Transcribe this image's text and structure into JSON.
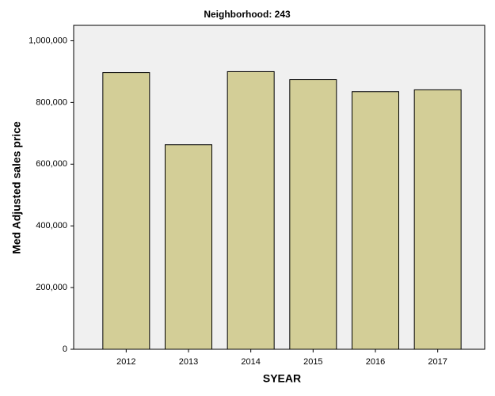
{
  "chart_data": {
    "type": "bar",
    "title": "Neighborhood: 243",
    "x_label": "SYEAR",
    "y_label": "Med Adjusted sales price",
    "categories": [
      "2012",
      "2013",
      "2014",
      "2015",
      "2016",
      "2017"
    ],
    "values": [
      897000,
      663000,
      900000,
      874000,
      835000,
      841000
    ],
    "color": "#d3ce97",
    "ylim": [
      0,
      1050000
    ],
    "yticks": [
      0,
      {
        "value": 200000,
        "label": "200,000"
      },
      {
        "value": 400000,
        "label": "400,000"
      },
      {
        "value": 600000,
        "label": "600,000"
      },
      {
        "value": 800000,
        "label": "800,000"
      },
      {
        "value": 1000000,
        "label": "1,000,000"
      }
    ],
    "grid": false
  }
}
